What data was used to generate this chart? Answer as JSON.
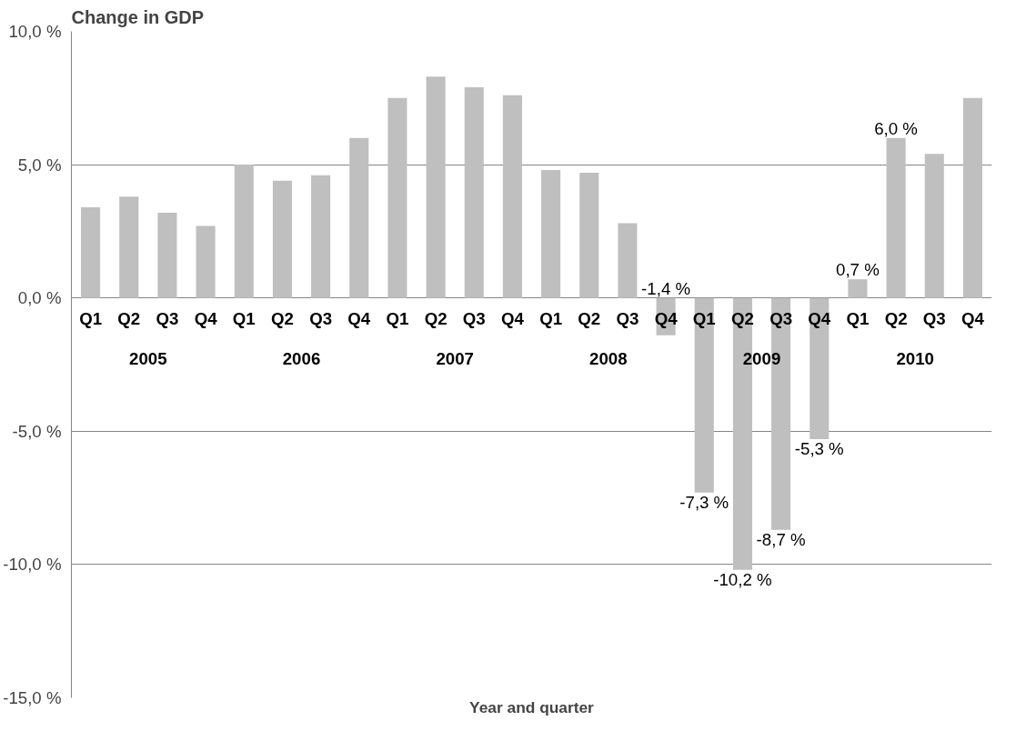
{
  "chart_data": {
    "type": "bar",
    "title": "Change in GDP",
    "xlabel": "Year and quarter",
    "categories": [
      "Q1",
      "Q2",
      "Q3",
      "Q4",
      "Q1",
      "Q2",
      "Q3",
      "Q4",
      "Q1",
      "Q2",
      "Q3",
      "Q4",
      "Q1",
      "Q2",
      "Q3",
      "Q4",
      "Q1",
      "Q2",
      "Q3",
      "Q4",
      "Q1",
      "Q2",
      "Q3",
      "Q4"
    ],
    "annotations": [
      "2005",
      "2006",
      "2007",
      "2008",
      "2009",
      "2010"
    ],
    "values": [
      3.4,
      3.8,
      3.2,
      2.7,
      5.0,
      4.4,
      4.6,
      6.0,
      7.5,
      8.3,
      7.9,
      7.6,
      4.8,
      4.7,
      2.8,
      -1.4,
      -7.3,
      -10.2,
      -8.7,
      -5.3,
      0.7,
      6.0,
      5.4,
      7.5
    ],
    "value_labels": [
      null,
      null,
      null,
      null,
      null,
      null,
      null,
      null,
      null,
      null,
      null,
      null,
      null,
      null,
      null,
      "-1,4 %",
      "-7,3 %",
      "-10,2 %",
      "-8,7 %",
      "-5,3 %",
      "0,7 %",
      "6,0 %",
      null,
      null
    ],
    "color": "#bfbfbf",
    "ylim": [
      -15,
      10
    ],
    "yticks": [
      {
        "value": -15,
        "label": "-15,0 %"
      },
      {
        "value": -10,
        "label": "-10,0 %"
      },
      {
        "value": -5,
        "label": "-5,0 %"
      },
      {
        "value": 0,
        "label": "0,0 %"
      },
      {
        "value": 5,
        "label": "5,0 %"
      },
      {
        "value": 10,
        "label": "10,0 %"
      }
    ],
    "grid": "y"
  }
}
